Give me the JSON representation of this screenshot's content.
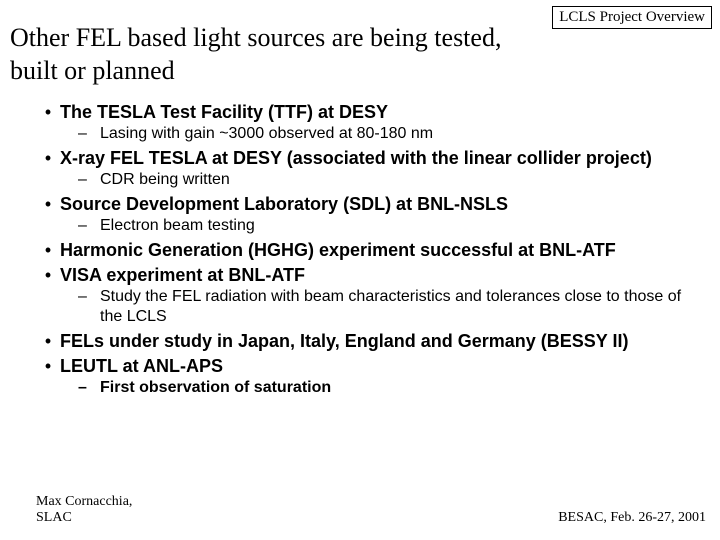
{
  "header_label": "LCLS Project Overview",
  "title": "Other FEL based light sources are being tested, built or planned",
  "items": [
    {
      "text": "The TESLA Test Facility (TTF) at DESY",
      "subs": [
        "Lasing with gain ~3000 observed at 80-180 nm"
      ]
    },
    {
      "text": "X-ray FEL TESLA at DESY (associated with the linear collider project)",
      "subs": [
        "CDR being written"
      ]
    },
    {
      "text": "Source Development Laboratory (SDL) at BNL-NSLS",
      "subs": [
        "Electron beam testing"
      ]
    },
    {
      "text": "Harmonic Generation (HGHG) experiment successful at BNL-ATF",
      "subs": []
    },
    {
      "text": "VISA experiment at BNL-ATF",
      "subs": [
        "Study the FEL radiation with beam characteristics and tolerances close to those of the LCLS"
      ]
    },
    {
      "text": "FELs under study in Japan, Italy, England and Germany (BESSY II)",
      "subs": []
    },
    {
      "text": "LEUTL at ANL-APS",
      "subs": [
        "First observation of saturation"
      ],
      "subs_bold": true
    }
  ],
  "footer": {
    "author": "Max Cornacchia,",
    "org": "SLAC",
    "event": "BESAC, Feb. 26-27, 2001"
  },
  "style": {
    "bullet_char": "•",
    "dash_char": "–",
    "title_fontsize": 26,
    "bullet_fontsize": 18,
    "sub_fontsize": 16,
    "colors": {
      "text": "#000000",
      "bg": "#ffffff",
      "border": "#000000"
    }
  }
}
